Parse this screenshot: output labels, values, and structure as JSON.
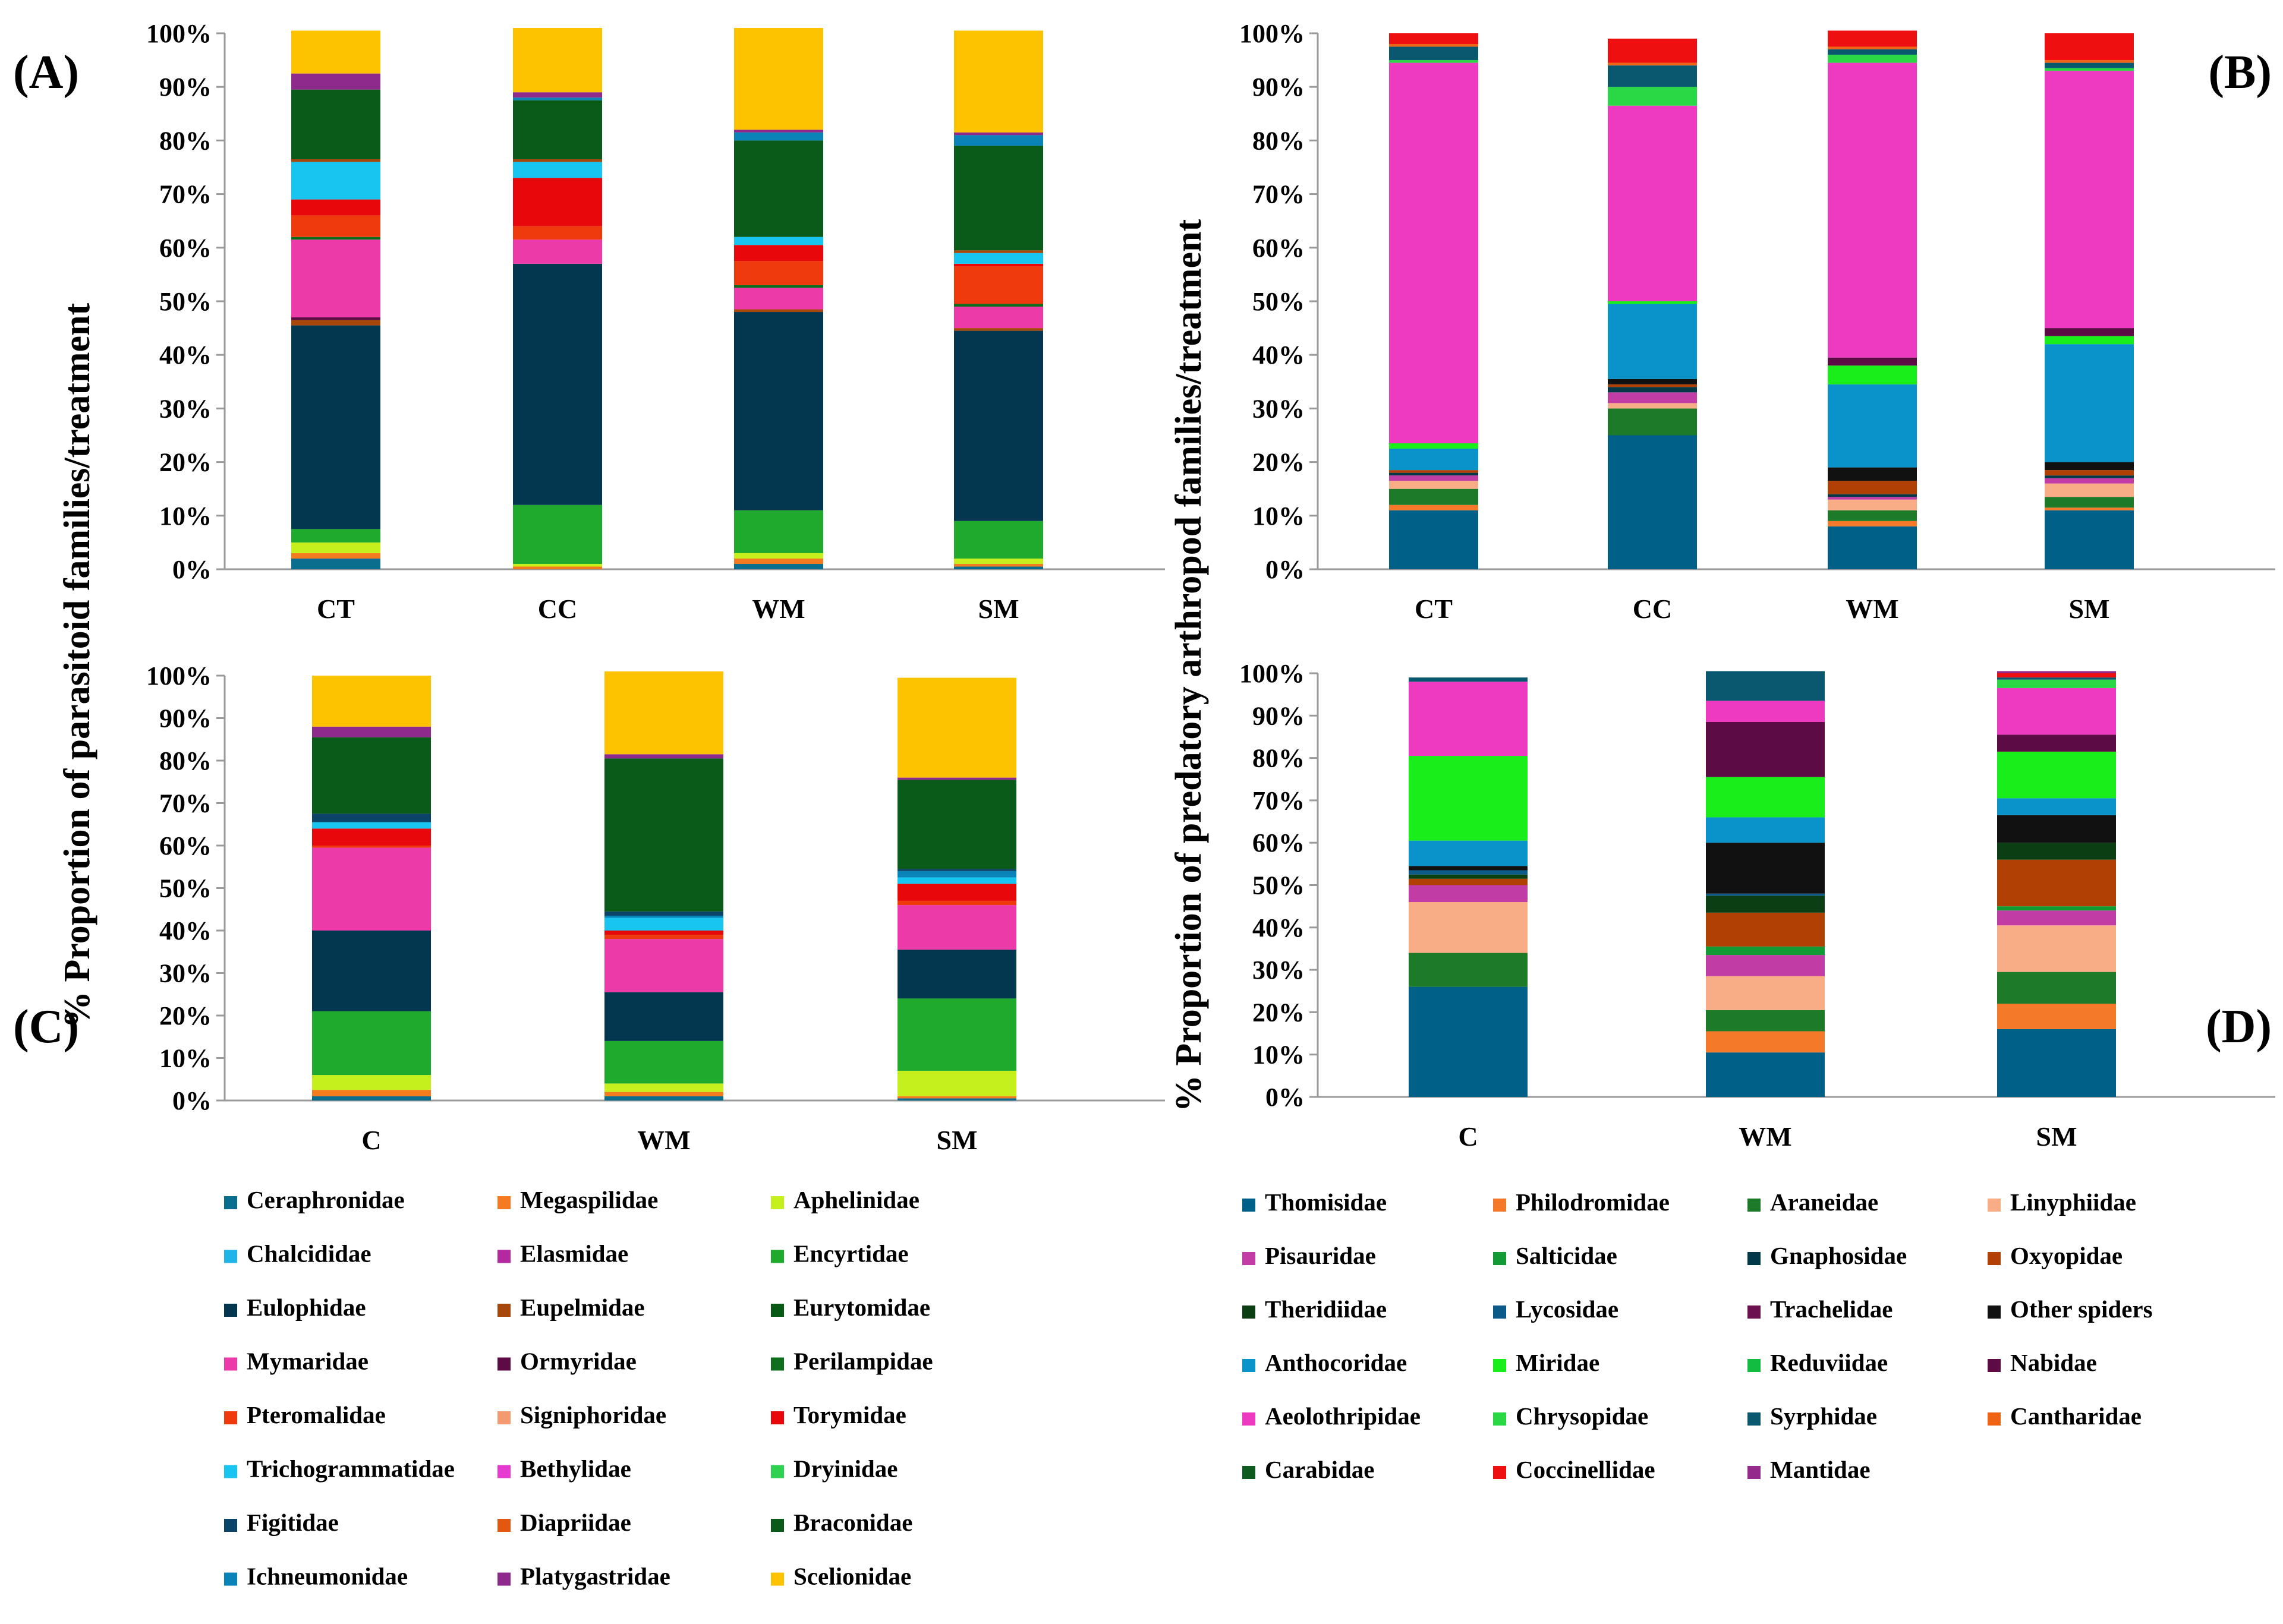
{
  "labels": {
    "ylabel_left": "% Proportion of parasitoid families/treatment",
    "ylabel_right": "% Proportion of predatory arthropod families/treatment"
  },
  "colors": {
    "Ceraphronidae": "#0b6e8e",
    "Megaspilidae": "#f47b20",
    "Aphelinidae": "#c6f01d",
    "Chalcididae": "#20b4e8",
    "Elasmidae": "#b32aa0",
    "Encyrtidae": "#1faa2e",
    "Eulophidae": "#03364f",
    "Eupelmidae": "#a8470c",
    "Eurytomidae": "#075a14",
    "Mymaridae": "#ec3aa8",
    "Ormyridae": "#5c0b45",
    "Perilampidae": "#0f6e1d",
    "Pteromalidae": "#ee3a0c",
    "Signiphoridae": "#f49a70",
    "Torymidae": "#e8080c",
    "Trichogrammatidae": "#17c5f0",
    "Bethylidae": "#e63ad0",
    "Dryinidae": "#2ed150",
    "Figitidae": "#0b4468",
    "Diapriidae": "#e25810",
    "Braconidae": "#0a5a1a",
    "Ichneumonidae": "#0a84b8",
    "Platygastridae": "#8e2a8c",
    "Scelionidae": "#fdc300",
    "Thomisidae": "#006088",
    "Philodromidae": "#f47a2a",
    "Araneidae": "#1d7a28",
    "Linyphiidae": "#f8ad86",
    "Pisauridae": "#c23ca5",
    "Salticidae": "#129a34",
    "Gnaphosidae": "#003848",
    "Oxyopidae": "#b04004",
    "Theridiidae": "#0c3e14",
    "Lycosidae": "#0c5a88",
    "Trachelidae": "#6c1050",
    "Other spiders": "#111111",
    "Anthocoridae": "#0a92ca",
    "Miridae": "#1aee1a",
    "Reduviidae": "#12bc40",
    "Nabidae": "#5c0b45",
    "Aeolothripidae": "#ee3ac0",
    "Chrysopidae": "#2ad846",
    "Syrphidae": "#0a5870",
    "Cantharidae": "#ee6414",
    "Carabidae": "#0f5a1e",
    "Coccinellidae": "#ee1010",
    "Mantidae": "#942a8c"
  },
  "chart_data": [
    {
      "id": "A",
      "type": "bar",
      "stacked": true,
      "panel_label": "(A)",
      "title": "",
      "ylabel": "% Proportion of parasitoid families/treatment",
      "ylim": [
        0,
        100
      ],
      "yticks": [
        "0%",
        "10%",
        "20%",
        "30%",
        "40%",
        "50%",
        "60%",
        "70%",
        "80%",
        "90%",
        "100%"
      ],
      "categories": [
        "CT",
        "CC",
        "WM",
        "SM"
      ],
      "series": [
        {
          "name": "Ceraphronidae",
          "values": [
            2,
            0,
            1,
            0.5
          ]
        },
        {
          "name": "Megaspilidae",
          "values": [
            1,
            0.5,
            1,
            0.5
          ]
        },
        {
          "name": "Aphelinidae",
          "values": [
            2,
            0.5,
            1,
            1
          ]
        },
        {
          "name": "Encyrtidae",
          "values": [
            2.5,
            11,
            8,
            7
          ]
        },
        {
          "name": "Eulophidae",
          "values": [
            38,
            45,
            37,
            35.5
          ]
        },
        {
          "name": "Eupelmidae",
          "values": [
            1,
            0,
            0.5,
            0.5
          ]
        },
        {
          "name": "Ormyridae",
          "values": [
            0.5,
            0,
            0,
            0
          ]
        },
        {
          "name": "Mymaridae",
          "values": [
            14.5,
            4.5,
            4,
            4
          ]
        },
        {
          "name": "Perilampidae",
          "values": [
            0.5,
            0,
            0.5,
            0.5
          ]
        },
        {
          "name": "Pteromalidae",
          "values": [
            4,
            2.5,
            4.5,
            7
          ]
        },
        {
          "name": "Torymidae",
          "values": [
            3,
            9,
            3,
            0.5
          ]
        },
        {
          "name": "Trichogrammatidae",
          "values": [
            7,
            3,
            1.5,
            2
          ]
        },
        {
          "name": "Eupelmidae",
          "values": [
            0.5,
            0.5,
            0,
            0.5
          ]
        },
        {
          "name": "Braconidae",
          "values": [
            13,
            11,
            18,
            19.5
          ]
        },
        {
          "name": "Ichneumonidae",
          "values": [
            0,
            0.5,
            1.5,
            2
          ]
        },
        {
          "name": "Platygastridae",
          "values": [
            3,
            1,
            0.5,
            0.5
          ]
        },
        {
          "name": "Scelionidae",
          "values": [
            8,
            12,
            19,
            19
          ]
        }
      ]
    },
    {
      "id": "B",
      "type": "bar",
      "stacked": true,
      "panel_label": "(B)",
      "title": "",
      "ylabel": "% Proportion of predatory arthropod families/treatment",
      "ylim": [
        0,
        100
      ],
      "yticks": [
        "0%",
        "10%",
        "20%",
        "30%",
        "40%",
        "50%",
        "60%",
        "70%",
        "80%",
        "90%",
        "100%"
      ],
      "categories": [
        "CT",
        "CC",
        "WM",
        "SM"
      ],
      "series": [
        {
          "name": "Thomisidae",
          "values": [
            11,
            25,
            8,
            11
          ]
        },
        {
          "name": "Philodromidae",
          "values": [
            1,
            0,
            1,
            0.5
          ]
        },
        {
          "name": "Araneidae",
          "values": [
            3,
            5,
            2,
            2
          ]
        },
        {
          "name": "Linyphiidae",
          "values": [
            1.5,
            1,
            2,
            2.5
          ]
        },
        {
          "name": "Pisauridae",
          "values": [
            1,
            2,
            0.5,
            1
          ]
        },
        {
          "name": "Gnaphosidae",
          "values": [
            0.5,
            1,
            0.5,
            0.5
          ]
        },
        {
          "name": "Oxyopidae",
          "values": [
            0.5,
            0.5,
            2.5,
            1
          ]
        },
        {
          "name": "Other spiders",
          "values": [
            0,
            1,
            2.5,
            1.5
          ]
        },
        {
          "name": "Anthocoridae",
          "values": [
            4,
            14,
            15.5,
            22
          ]
        },
        {
          "name": "Miridae",
          "values": [
            1,
            0.5,
            3.5,
            1.5
          ]
        },
        {
          "name": "Nabidae",
          "values": [
            0,
            0,
            1.5,
            1.5
          ]
        },
        {
          "name": "Aeolothripidae",
          "values": [
            71,
            36.5,
            55,
            48
          ]
        },
        {
          "name": "Chrysopidae",
          "values": [
            0.5,
            3.5,
            1.5,
            0.5
          ]
        },
        {
          "name": "Syrphidae",
          "values": [
            2.5,
            4,
            1,
            1
          ]
        },
        {
          "name": "Cantharidae",
          "values": [
            0.5,
            0.5,
            0.5,
            0.5
          ]
        },
        {
          "name": "Coccinellidae",
          "values": [
            2,
            4.5,
            3,
            5
          ]
        }
      ]
    },
    {
      "id": "C",
      "type": "bar",
      "stacked": true,
      "panel_label": "(C)",
      "title": "",
      "ylabel": "% Proportion of parasitoid families/treatment",
      "ylim": [
        0,
        100
      ],
      "yticks": [
        "0%",
        "10%",
        "20%",
        "30%",
        "40%",
        "50%",
        "60%",
        "70%",
        "80%",
        "90%",
        "100%"
      ],
      "categories": [
        "C",
        "WM",
        "SM"
      ],
      "series": [
        {
          "name": "Ceraphronidae",
          "values": [
            1,
            1,
            0.5
          ]
        },
        {
          "name": "Megaspilidae",
          "values": [
            1.5,
            1,
            0.5
          ]
        },
        {
          "name": "Aphelinidae",
          "values": [
            3.5,
            2,
            6
          ]
        },
        {
          "name": "Encyrtidae",
          "values": [
            15,
            10,
            17
          ]
        },
        {
          "name": "Eulophidae",
          "values": [
            19,
            11.5,
            11.5
          ]
        },
        {
          "name": "Mymaridae",
          "values": [
            19.5,
            12.5,
            10.5
          ]
        },
        {
          "name": "Pteromalidae",
          "values": [
            0.5,
            1,
            1
          ]
        },
        {
          "name": "Torymidae",
          "values": [
            4,
            1,
            4
          ]
        },
        {
          "name": "Trichogrammatidae",
          "values": [
            1.5,
            3,
            1.5
          ]
        },
        {
          "name": "Ichneumonidae",
          "values": [
            0,
            0.5,
            1.5
          ]
        },
        {
          "name": "Figitidae",
          "values": [
            2,
            1,
            0.5
          ]
        },
        {
          "name": "Braconidae",
          "values": [
            18,
            36,
            21
          ]
        },
        {
          "name": "Platygastridae",
          "values": [
            2.5,
            1,
            0.5
          ]
        },
        {
          "name": "Scelionidae",
          "values": [
            12,
            19.5,
            23.5
          ]
        }
      ]
    },
    {
      "id": "D",
      "type": "bar",
      "stacked": true,
      "panel_label": "(D)",
      "title": "",
      "ylabel": "% Proportion of predatory arthropod families/treatment",
      "ylim": [
        0,
        100
      ],
      "yticks": [
        "0%",
        "10%",
        "20%",
        "30%",
        "40%",
        "50%",
        "60%",
        "70%",
        "80%",
        "90%",
        "100%"
      ],
      "categories": [
        "C",
        "WM",
        "SM"
      ],
      "series": [
        {
          "name": "Thomisidae",
          "values": [
            26,
            10.5,
            16
          ]
        },
        {
          "name": "Philodromidae",
          "values": [
            0,
            5,
            6
          ]
        },
        {
          "name": "Araneidae",
          "values": [
            8,
            5,
            7.5
          ]
        },
        {
          "name": "Linyphiidae",
          "values": [
            12,
            8,
            11
          ]
        },
        {
          "name": "Pisauridae",
          "values": [
            4,
            5,
            3.5
          ]
        },
        {
          "name": "Salticidae",
          "values": [
            0,
            2,
            1
          ]
        },
        {
          "name": "Oxyopidae",
          "values": [
            1.5,
            8,
            11
          ]
        },
        {
          "name": "Theridiidae",
          "values": [
            1,
            4,
            4
          ]
        },
        {
          "name": "Lycosidae",
          "values": [
            1,
            0.5,
            0
          ]
        },
        {
          "name": "Other spiders",
          "values": [
            1,
            12,
            6.5
          ]
        },
        {
          "name": "Anthocoridae",
          "values": [
            6,
            6,
            4
          ]
        },
        {
          "name": "Miridae",
          "values": [
            20,
            9.5,
            11
          ]
        },
        {
          "name": "Nabidae",
          "values": [
            0,
            13,
            4
          ]
        },
        {
          "name": "Aeolothripidae",
          "values": [
            17.5,
            5,
            11
          ]
        },
        {
          "name": "Chrysopidae",
          "values": [
            0,
            0,
            2
          ]
        },
        {
          "name": "Syrphidae",
          "values": [
            1,
            7,
            0.5
          ]
        },
        {
          "name": "Coccinellidae",
          "values": [
            0,
            0,
            1
          ]
        },
        {
          "name": "Mantidae",
          "values": [
            0,
            0,
            0.5
          ]
        }
      ]
    }
  ],
  "legend_left": [
    "Ceraphronidae",
    "Megaspilidae",
    "Aphelinidae",
    "Chalcididae",
    "Elasmidae",
    "Encyrtidae",
    "Eulophidae",
    "Eupelmidae",
    "Eurytomidae",
    "Mymaridae",
    "Ormyridae",
    "Perilampidae",
    "Pteromalidae",
    "Signiphoridae",
    "Torymidae",
    "Trichogrammatidae",
    "Bethylidae",
    "Dryinidae",
    "Figitidae",
    "Diapriidae",
    "Braconidae",
    "Ichneumonidae",
    "Platygastridae",
    "Scelionidae"
  ],
  "legend_right": [
    "Thomisidae",
    "Philodromidae",
    "Araneidae",
    "Linyphiidae",
    "Pisauridae",
    "Salticidae",
    "Gnaphosidae",
    "Oxyopidae",
    "Theridiidae",
    "Lycosidae",
    "Trachelidae",
    "Other spiders",
    "Anthocoridae",
    "Miridae",
    "Reduviidae",
    "Nabidae",
    "Aeolothripidae",
    "Chrysopidae",
    "Syrphidae",
    "Cantharidae",
    "Carabidae",
    "Coccinellidae",
    "Mantidae"
  ]
}
